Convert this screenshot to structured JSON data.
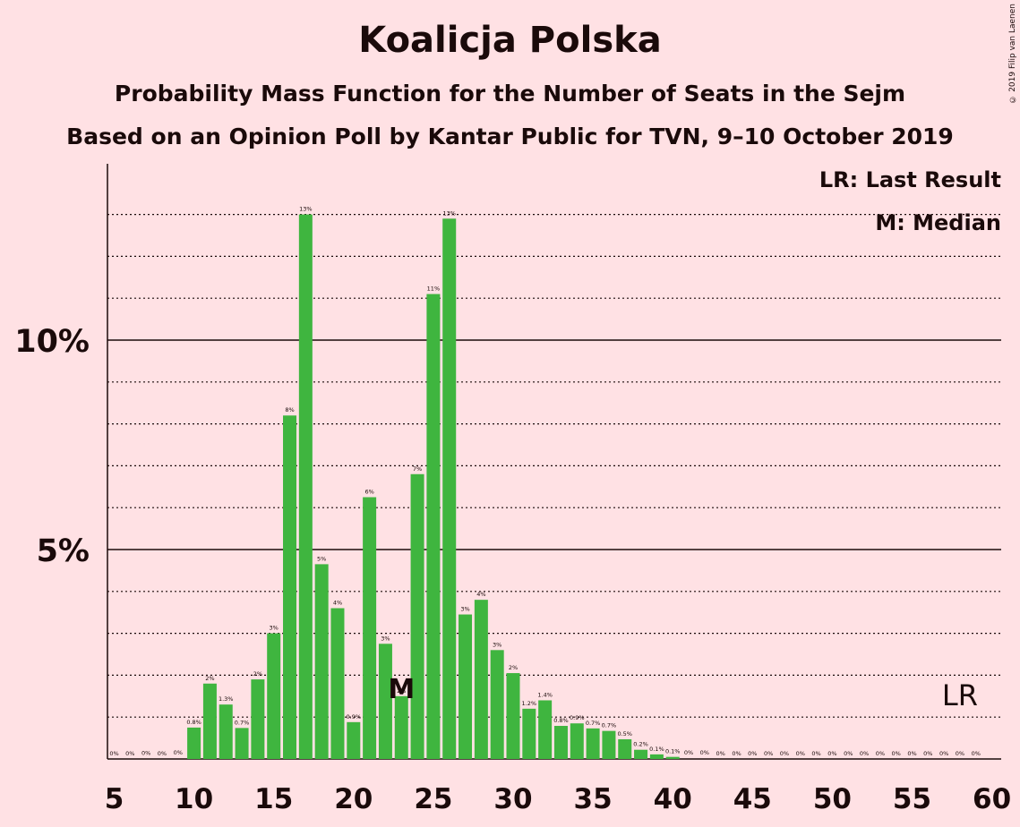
{
  "title": "Koalicja Polska",
  "subtitle1": "Probability Mass Function for the Number of Seats in the Sejm",
  "subtitle2": "Based on an Opinion Poll by Kantar Public for TVN, 9–10 October 2019",
  "copyright": "© 2019 Filip van Laenen",
  "legend": {
    "lr": "LR: Last Result",
    "median": "M: Median"
  },
  "markers": {
    "median_label": "M",
    "median_seat": 23,
    "lr_label": "LR",
    "lr_seat": 58
  },
  "colors": {
    "bar": "#3fb53f",
    "background": "#ffe1e4",
    "text": "#1a0a0a"
  },
  "chart_data": {
    "type": "bar",
    "x": [
      5,
      6,
      7,
      8,
      9,
      10,
      11,
      12,
      13,
      14,
      15,
      16,
      17,
      18,
      19,
      20,
      21,
      22,
      23,
      24,
      25,
      26,
      27,
      28,
      29,
      30,
      31,
      32,
      33,
      34,
      35,
      36,
      37,
      38,
      39,
      40,
      41,
      42,
      43,
      44,
      45,
      46,
      47,
      48,
      49,
      50,
      51,
      52,
      53,
      54,
      55,
      56,
      57,
      58,
      59,
      60
    ],
    "values": [
      0,
      0,
      0.01,
      0,
      0.02,
      0.75,
      1.8,
      1.3,
      0.74,
      1.9,
      3.0,
      8.2,
      13.0,
      4.65,
      3.6,
      0.88,
      6.25,
      2.75,
      1.5,
      6.8,
      11.1,
      12.9,
      3.45,
      3.8,
      2.6,
      2.05,
      1.2,
      1.4,
      0.79,
      0.85,
      0.73,
      0.67,
      0.47,
      0.22,
      0.11,
      0.05,
      0.02,
      0.02,
      0,
      0,
      0,
      0,
      0,
      0,
      0,
      0,
      0,
      0,
      0,
      0,
      0,
      0,
      0,
      0,
      0,
      0
    ],
    "labels": [
      "0%",
      "0%",
      "0%",
      "0%",
      "0%",
      "0.8%",
      "2%",
      "1.3%",
      "0.7%",
      "2%",
      "3%",
      "8%",
      "13%",
      "5%",
      "4%",
      "0.9%",
      "6%",
      "3%",
      "2%",
      "7%",
      "11%",
      "13%",
      "3%",
      "4%",
      "3%",
      "2%",
      "1.2%",
      "1.4%",
      "0.8%",
      "0.9%",
      "0.7%",
      "0.7%",
      "0.5%",
      "0.2%",
      "0.1%",
      "0.1%",
      "0%",
      "0%",
      "0%",
      "0%",
      "0%",
      "0%",
      "0%",
      "0%",
      "0%",
      "0%",
      "0%",
      "0%",
      "0%",
      "0%",
      "0%",
      "0%",
      "0%",
      "0%",
      "0%",
      ""
    ],
    "xticks": [
      5,
      10,
      15,
      20,
      25,
      30,
      35,
      40,
      45,
      50,
      55,
      60
    ],
    "xtick_labels": [
      "5",
      "10",
      "15",
      "20",
      "25",
      "30",
      "35",
      "40",
      "45",
      "50",
      "55",
      "60"
    ],
    "ytick_labels": [
      "5%",
      "10%"
    ],
    "ytick_values": [
      5,
      10
    ],
    "ylim": [
      0,
      14
    ],
    "grid": "dotted every 1%, solid at 5% and 10%"
  }
}
